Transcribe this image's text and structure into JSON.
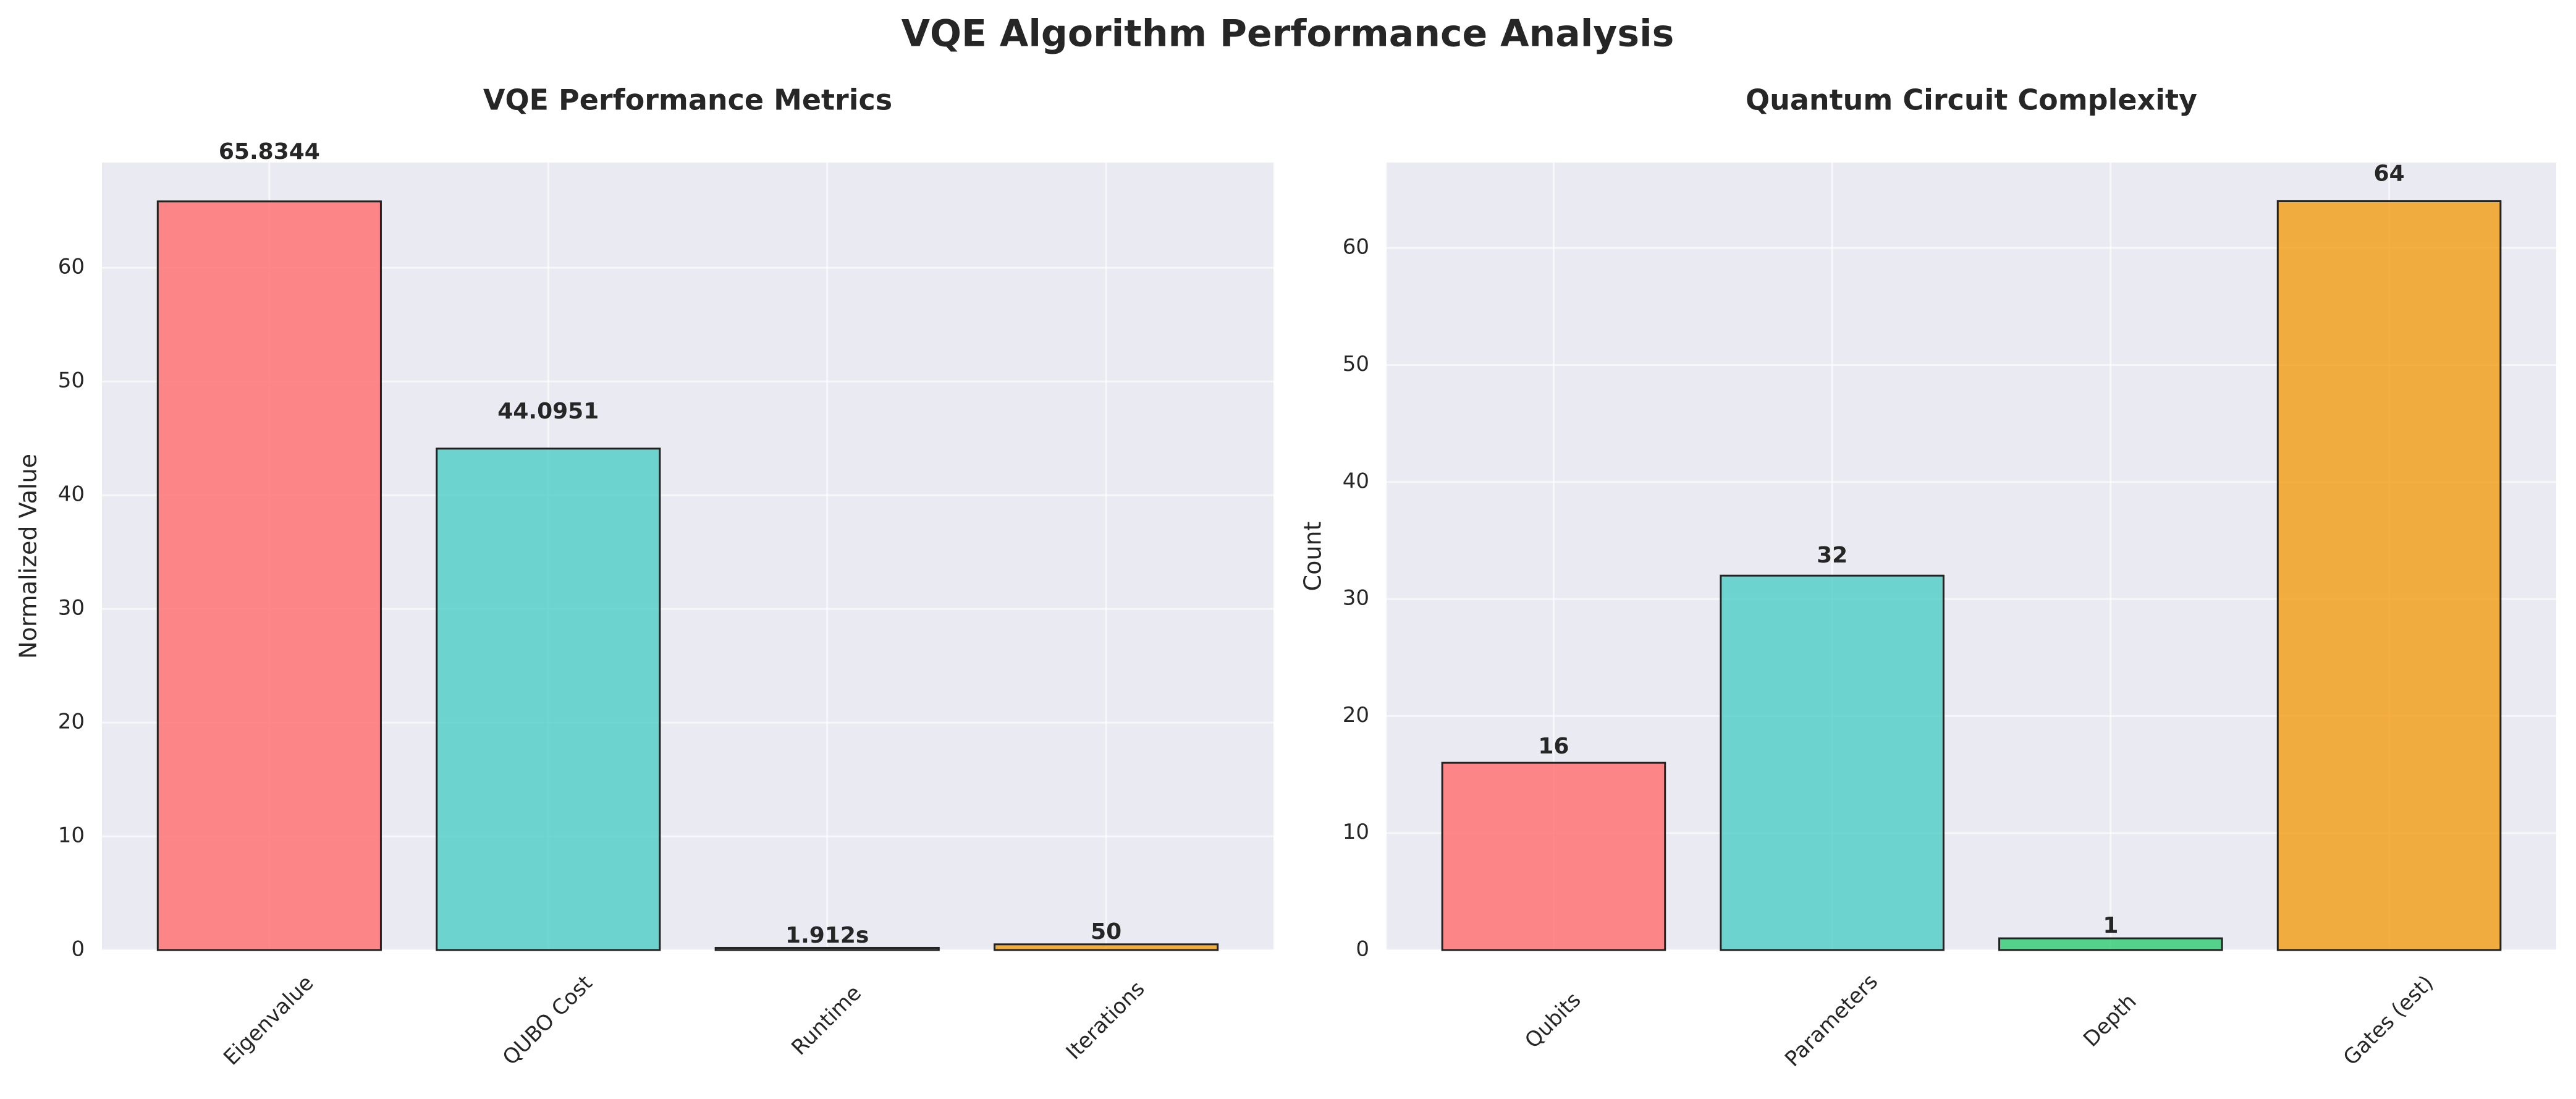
{
  "title": "VQE Algorithm Performance Analysis",
  "chart_data": [
    {
      "type": "bar",
      "title": "VQE Performance Metrics",
      "ylabel": "Normalized Value",
      "categories": [
        "Eigenvalue",
        "QUBO Cost",
        "Runtime",
        "Iterations"
      ],
      "values": [
        65.8344,
        44.0951,
        0.1912,
        0.5
      ],
      "bar_annotations": [
        "65.8344",
        "44.0951",
        "1.912s",
        "50"
      ],
      "colors": [
        "#FF6B6B",
        "#4ECDC4",
        "#45B7D1",
        "#F39C12"
      ],
      "ylim": [
        0,
        69.25
      ],
      "yticks": [
        0,
        10,
        20,
        30,
        40,
        50,
        60
      ],
      "grid": true
    },
    {
      "type": "bar",
      "title": "Quantum Circuit Complexity",
      "ylabel": "Count",
      "categories": [
        "Qubits",
        "Parameters",
        "Depth",
        "Gates (est)"
      ],
      "values": [
        16,
        32,
        1,
        64
      ],
      "colors": [
        "#FF6B6B",
        "#4ECDC4",
        "#2ECC71",
        "#F39C12"
      ],
      "ylim": [
        0,
        67.3
      ],
      "yticks": [
        0,
        10,
        20,
        30,
        40,
        50,
        60
      ],
      "grid": true
    }
  ]
}
